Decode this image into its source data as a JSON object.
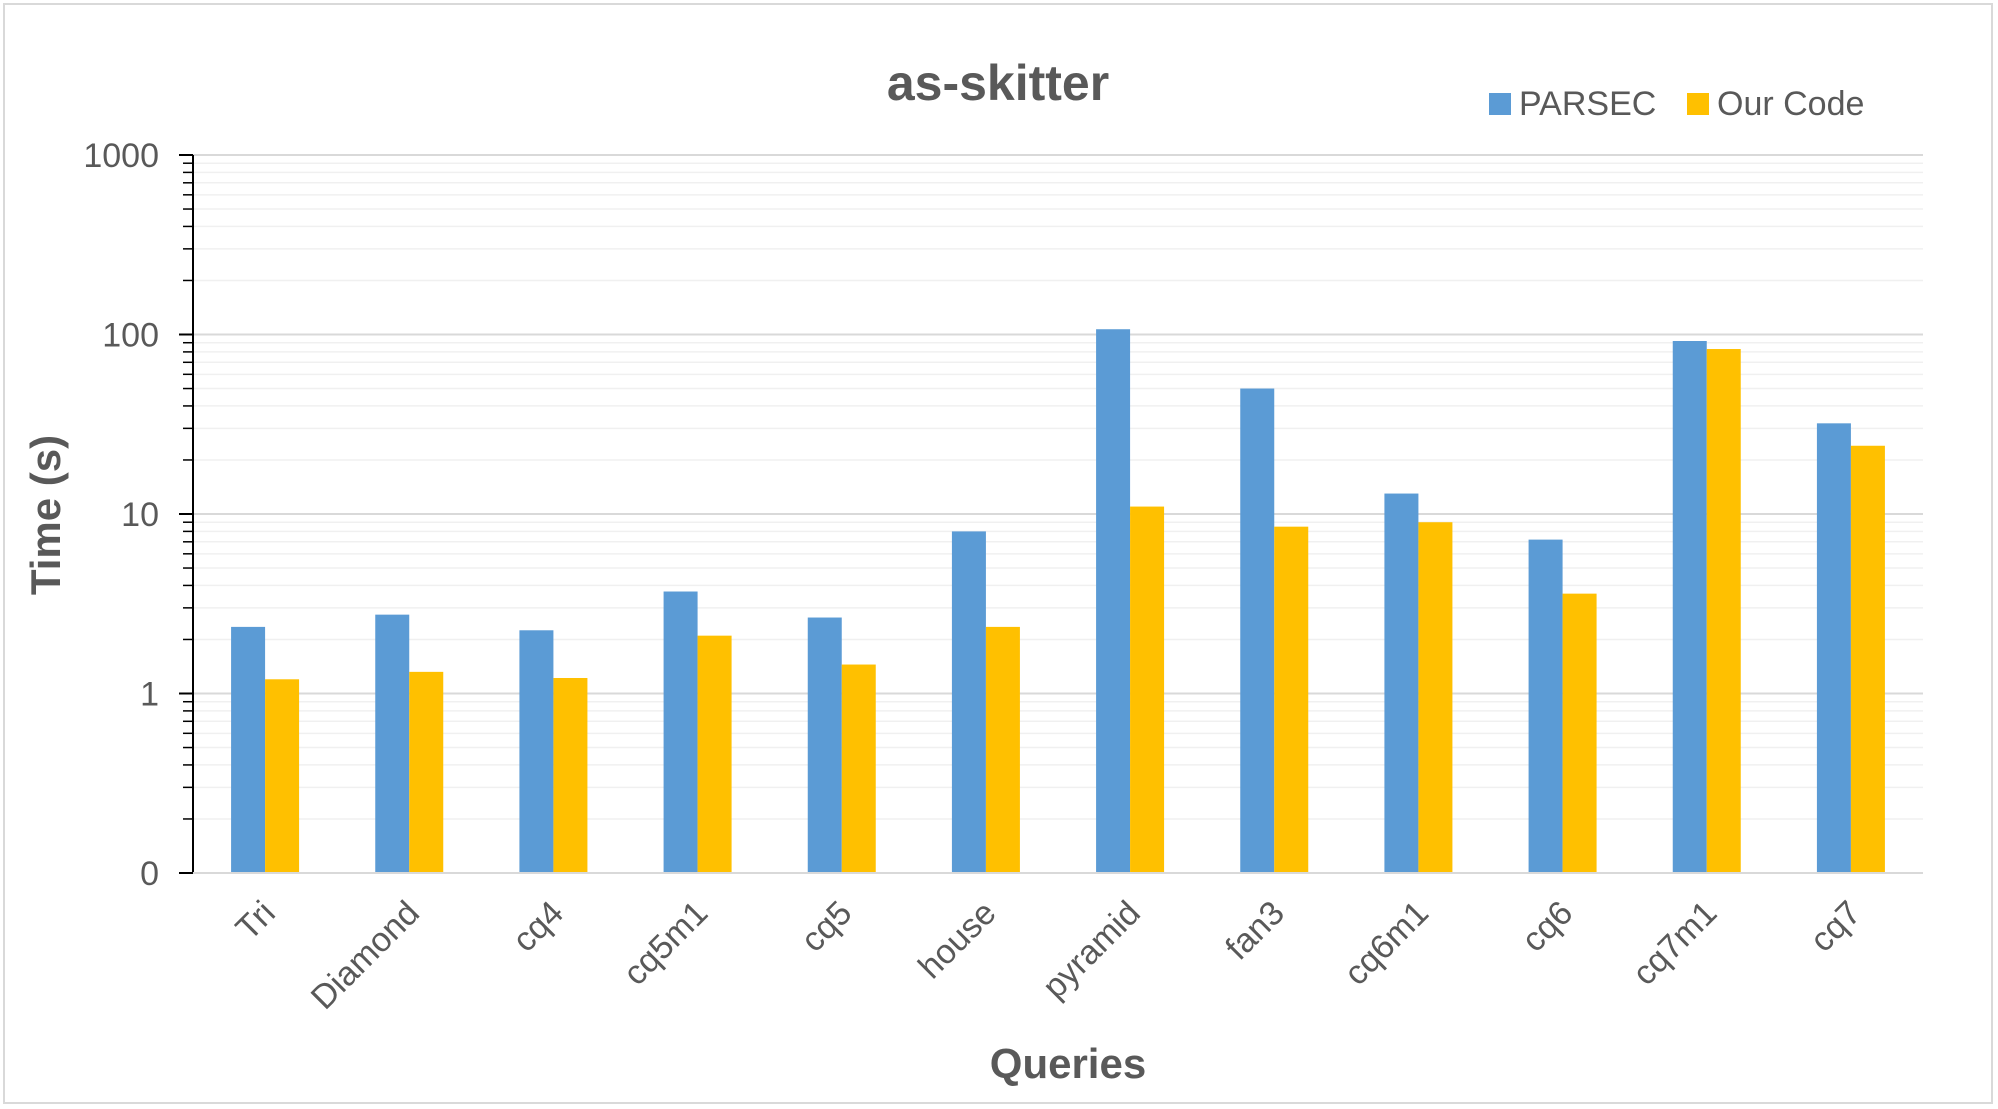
{
  "colors": {
    "parsec": "#5b9bd5",
    "our_code": "#ffc000",
    "major_grid": "#d9d9d9",
    "minor_grid": "#f0f0f0",
    "axis": "#000000",
    "text": "#595959"
  },
  "chart_data": {
    "type": "bar",
    "title": "as-skitter",
    "xlabel": "Queries",
    "ylabel": "Time (s)",
    "y_scale": "log",
    "ylim": [
      0.1,
      1000
    ],
    "y_tick_values": [
      0.1,
      1,
      10,
      100,
      1000
    ],
    "y_tick_labels": [
      "0",
      "1",
      "10",
      "100",
      "1000"
    ],
    "grid": true,
    "legend_position": "top-right",
    "categories": [
      "Tri",
      "Diamond",
      "cq4",
      "cq5m1",
      "cq5",
      "house",
      "pyramid",
      "fan3",
      "cq6m1",
      "cq6",
      "cq7m1",
      "cq7"
    ],
    "series": [
      {
        "name": "PARSEC",
        "color": "#5b9bd5",
        "values": [
          2.35,
          2.75,
          2.25,
          3.7,
          2.65,
          8.0,
          107,
          50,
          13,
          7.2,
          92,
          32
        ]
      },
      {
        "name": "Our Code",
        "color": "#ffc000",
        "values": [
          1.2,
          1.32,
          1.22,
          2.1,
          1.45,
          2.35,
          11,
          8.5,
          9.0,
          3.6,
          83,
          24
        ]
      }
    ]
  }
}
